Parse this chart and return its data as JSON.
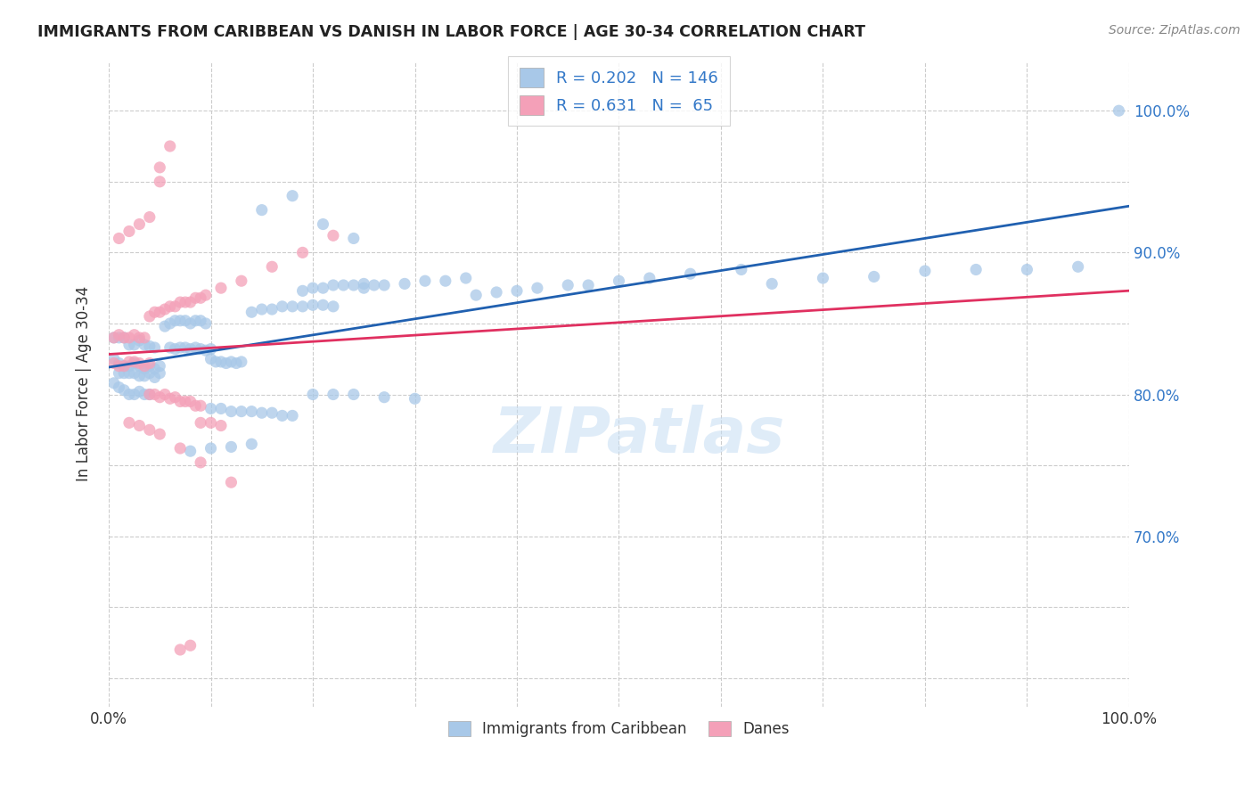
{
  "title": "IMMIGRANTS FROM CARIBBEAN VS DANISH IN LABOR FORCE | AGE 30-34 CORRELATION CHART",
  "source": "Source: ZipAtlas.com",
  "ylabel": "In Labor Force | Age 30-34",
  "x_min": 0.0,
  "x_max": 1.0,
  "y_min": 0.58,
  "y_max": 1.035,
  "blue_R": 0.202,
  "blue_N": 146,
  "pink_R": 0.631,
  "pink_N": 65,
  "blue_color": "#a8c8e8",
  "pink_color": "#f4a0b8",
  "blue_line_color": "#2060b0",
  "pink_line_color": "#e03060",
  "legend_label_blue": "Immigrants from Caribbean",
  "legend_label_pink": "Danes",
  "watermark": "ZIPatlas",
  "blue_scatter_x": [
    0.005,
    0.01,
    0.015,
    0.02,
    0.025,
    0.03,
    0.035,
    0.04,
    0.045,
    0.005,
    0.01,
    0.015,
    0.02,
    0.025,
    0.03,
    0.035,
    0.04,
    0.045,
    0.05,
    0.005,
    0.01,
    0.015,
    0.02,
    0.025,
    0.03,
    0.035,
    0.04,
    0.01,
    0.015,
    0.02,
    0.025,
    0.03,
    0.035,
    0.04,
    0.045,
    0.05,
    0.06,
    0.065,
    0.07,
    0.075,
    0.08,
    0.085,
    0.09,
    0.095,
    0.1,
    0.055,
    0.06,
    0.065,
    0.07,
    0.075,
    0.08,
    0.085,
    0.09,
    0.095,
    0.1,
    0.105,
    0.11,
    0.115,
    0.12,
    0.125,
    0.13,
    0.1,
    0.11,
    0.12,
    0.13,
    0.14,
    0.15,
    0.16,
    0.17,
    0.18,
    0.14,
    0.15,
    0.16,
    0.17,
    0.18,
    0.19,
    0.2,
    0.21,
    0.22,
    0.19,
    0.2,
    0.21,
    0.22,
    0.23,
    0.24,
    0.25,
    0.26,
    0.25,
    0.27,
    0.29,
    0.31,
    0.33,
    0.35,
    0.36,
    0.38,
    0.4,
    0.42,
    0.45,
    0.47,
    0.5,
    0.53,
    0.57,
    0.62,
    0.65,
    0.7,
    0.75,
    0.8,
    0.85,
    0.9,
    0.95,
    0.99,
    0.2,
    0.22,
    0.24,
    0.27,
    0.3,
    0.15,
    0.18,
    0.21,
    0.24,
    0.08,
    0.1,
    0.12,
    0.14
  ],
  "blue_scatter_y": [
    0.84,
    0.84,
    0.84,
    0.835,
    0.835,
    0.838,
    0.835,
    0.834,
    0.833,
    0.825,
    0.822,
    0.82,
    0.82,
    0.822,
    0.82,
    0.818,
    0.82,
    0.818,
    0.82,
    0.808,
    0.805,
    0.803,
    0.8,
    0.8,
    0.802,
    0.8,
    0.8,
    0.815,
    0.815,
    0.815,
    0.815,
    0.813,
    0.813,
    0.815,
    0.812,
    0.815,
    0.833,
    0.832,
    0.833,
    0.833,
    0.832,
    0.833,
    0.832,
    0.831,
    0.832,
    0.848,
    0.85,
    0.852,
    0.852,
    0.852,
    0.85,
    0.852,
    0.852,
    0.85,
    0.825,
    0.823,
    0.823,
    0.822,
    0.823,
    0.822,
    0.823,
    0.79,
    0.79,
    0.788,
    0.788,
    0.788,
    0.787,
    0.787,
    0.785,
    0.785,
    0.858,
    0.86,
    0.86,
    0.862,
    0.862,
    0.862,
    0.863,
    0.863,
    0.862,
    0.873,
    0.875,
    0.875,
    0.877,
    0.877,
    0.877,
    0.878,
    0.877,
    0.875,
    0.877,
    0.878,
    0.88,
    0.88,
    0.882,
    0.87,
    0.872,
    0.873,
    0.875,
    0.877,
    0.877,
    0.88,
    0.882,
    0.885,
    0.888,
    0.878,
    0.882,
    0.883,
    0.887,
    0.888,
    0.888,
    0.89,
    1.0,
    0.8,
    0.8,
    0.8,
    0.798,
    0.797,
    0.93,
    0.94,
    0.92,
    0.91,
    0.76,
    0.762,
    0.763,
    0.765
  ],
  "pink_scatter_x": [
    0.005,
    0.01,
    0.015,
    0.02,
    0.025,
    0.03,
    0.035,
    0.005,
    0.01,
    0.015,
    0.02,
    0.025,
    0.03,
    0.035,
    0.04,
    0.04,
    0.045,
    0.05,
    0.055,
    0.06,
    0.065,
    0.07,
    0.075,
    0.08,
    0.085,
    0.09,
    0.04,
    0.045,
    0.05,
    0.055,
    0.06,
    0.065,
    0.07,
    0.075,
    0.08,
    0.085,
    0.09,
    0.01,
    0.02,
    0.03,
    0.04,
    0.05,
    0.06,
    0.02,
    0.03,
    0.04,
    0.05,
    0.07,
    0.09,
    0.12,
    0.095,
    0.11,
    0.13,
    0.16,
    0.19,
    0.22,
    0.09,
    0.1,
    0.11,
    0.05,
    0.07,
    0.08
  ],
  "pink_scatter_y": [
    0.84,
    0.842,
    0.84,
    0.84,
    0.842,
    0.84,
    0.84,
    0.822,
    0.82,
    0.82,
    0.823,
    0.823,
    0.822,
    0.82,
    0.822,
    0.855,
    0.858,
    0.858,
    0.86,
    0.862,
    0.862,
    0.865,
    0.865,
    0.865,
    0.868,
    0.868,
    0.8,
    0.8,
    0.798,
    0.8,
    0.797,
    0.798,
    0.795,
    0.795,
    0.795,
    0.792,
    0.792,
    0.91,
    0.915,
    0.92,
    0.925,
    0.95,
    0.975,
    0.78,
    0.778,
    0.775,
    0.772,
    0.762,
    0.752,
    0.738,
    0.87,
    0.875,
    0.88,
    0.89,
    0.9,
    0.912,
    0.78,
    0.78,
    0.778,
    0.96,
    0.62,
    0.623
  ]
}
